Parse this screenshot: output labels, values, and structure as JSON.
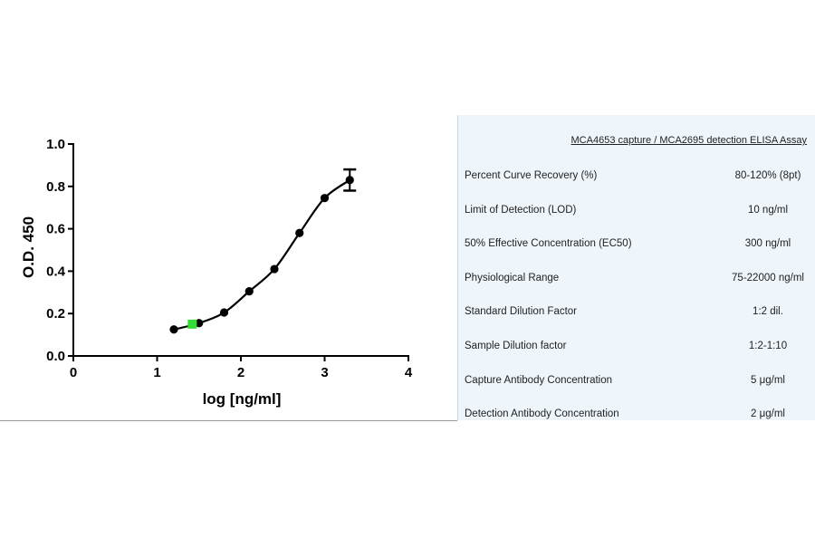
{
  "chart_data": {
    "type": "scatter",
    "xlabel": "log [ng/ml]",
    "ylabel": "O.D. 450",
    "xlim": [
      0,
      4
    ],
    "ylim": [
      0,
      1.0
    ],
    "x_ticks": [
      "0",
      "1",
      "2",
      "3",
      "4"
    ],
    "y_ticks": [
      "0.0",
      "0.2",
      "0.4",
      "0.6",
      "0.8",
      "1.0"
    ],
    "grid": false,
    "series": [
      {
        "marker": "circle",
        "color": "#000000",
        "points": [
          {
            "x": 1.2,
            "y": 0.125
          },
          {
            "x": 1.5,
            "y": 0.155
          },
          {
            "x": 1.8,
            "y": 0.205
          },
          {
            "x": 2.1,
            "y": 0.305
          },
          {
            "x": 2.4,
            "y": 0.41
          },
          {
            "x": 2.7,
            "y": 0.58
          },
          {
            "x": 3.0,
            "y": 0.745
          },
          {
            "x": 3.3,
            "y": 0.83,
            "error": 0.05
          }
        ],
        "fit_curve": "sigmoidal"
      }
    ],
    "highlight": {
      "x": 1.42,
      "y": 0.15,
      "color": "#33dd33",
      "marker": "square"
    }
  },
  "table": {
    "title": "MCA4653 capture / MCA2695 detection ELISA Assay",
    "rows": [
      {
        "label": "Percent Curve Recovery (%)",
        "value": "80-120% (8pt)"
      },
      {
        "label": "Limit of Detection (LOD)",
        "value": "10 ng/ml"
      },
      {
        "label": "50% Effective Concentration (EC50)",
        "value": "300 ng/ml"
      },
      {
        "label": "Physiological Range",
        "value": "75-22000 ng/ml"
      },
      {
        "label": "Standard Dilution Factor",
        "value": "1:2 dil."
      },
      {
        "label": "Sample Dilution factor",
        "value": "1:2-1:10"
      },
      {
        "label": "Capture Antibody Concentration",
        "value": "5 μg/ml"
      },
      {
        "label": "Detection Antibody Concentration",
        "value": "2 μg/ml"
      }
    ]
  }
}
